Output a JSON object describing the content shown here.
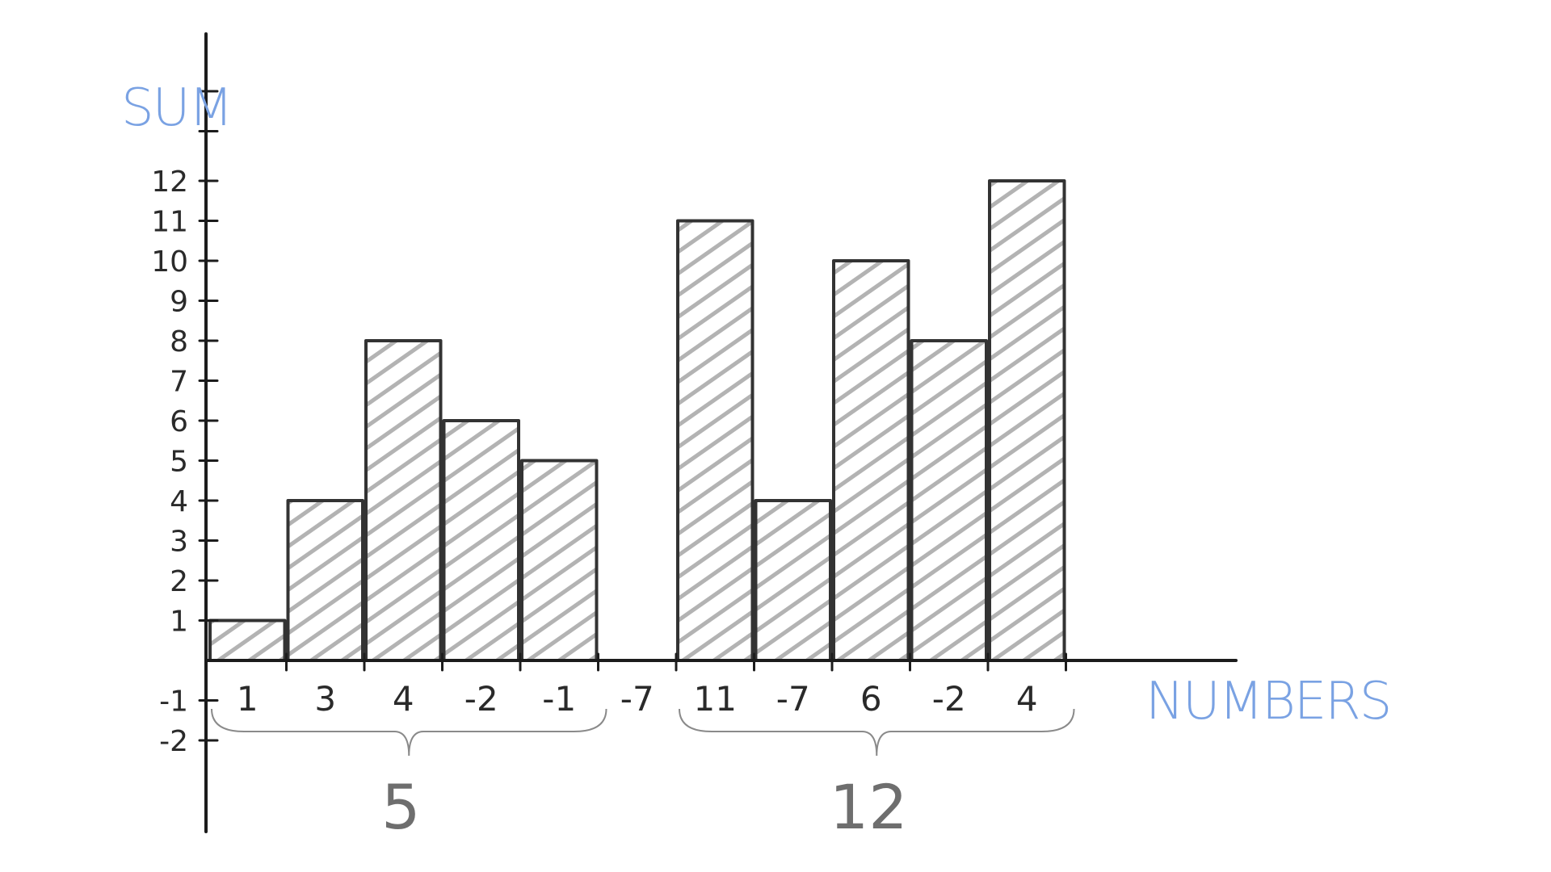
{
  "colors": {
    "axis_title": "#7aa2e3",
    "ink": "#1c1c1c",
    "hatch": "#9a9a9a",
    "brace": "#8a8a8a",
    "group_sum": "#6e6e6e"
  },
  "chart_data": {
    "type": "bar",
    "xlabel": "NUMBERS",
    "ylabel": "SUM",
    "ylim": [
      -2,
      14
    ],
    "y_ticks": [
      "-2",
      "-1",
      "1",
      "2",
      "3",
      "4",
      "5",
      "6",
      "7",
      "8",
      "9",
      "10",
      "11",
      "12"
    ],
    "grid": false,
    "categories": [
      "1",
      "3",
      "4",
      "-2",
      "-1",
      "-7",
      "11",
      "-7",
      "6",
      "-2",
      "4"
    ],
    "values": [
      1,
      4,
      8,
      6,
      5,
      0,
      11,
      4,
      10,
      8,
      12
    ],
    "groups": [
      {
        "sum_label": "5",
        "start_index": 0,
        "end_index": 4
      },
      {
        "sum_label": "12",
        "start_index": 6,
        "end_index": 10
      }
    ]
  }
}
